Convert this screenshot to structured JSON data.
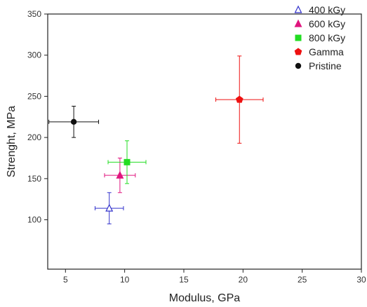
{
  "chart_data": {
    "type": "scatter",
    "xlabel": "Modulus, GPa",
    "ylabel": "Strenght, MPa",
    "xlim": [
      3.5,
      30
    ],
    "ylim": [
      40,
      350
    ],
    "x_ticks": [
      5,
      10,
      15,
      20,
      25,
      30
    ],
    "y_ticks": [
      100,
      150,
      200,
      250,
      300,
      350
    ],
    "grid": false,
    "legend_position": "top-right",
    "series": [
      {
        "name": "400 kGy",
        "color": "#3333cc",
        "marker": "triangle-open",
        "points": [
          {
            "x": 8.7,
            "y": 114,
            "xerr": 1.2,
            "yerr": 19
          }
        ]
      },
      {
        "name": "600 kGy",
        "color": "#e0157e",
        "marker": "triangle",
        "points": [
          {
            "x": 9.6,
            "y": 154,
            "xerr": 1.3,
            "yerr": 21
          }
        ]
      },
      {
        "name": "800 kGy",
        "color": "#22dd22",
        "marker": "square",
        "points": [
          {
            "x": 10.2,
            "y": 170,
            "xerr": 1.6,
            "yerr": 26
          }
        ]
      },
      {
        "name": "Gamma",
        "color": "#ee1111",
        "marker": "pentagon",
        "points": [
          {
            "x": 19.7,
            "y": 246,
            "xerr": 2.0,
            "yerr": 53
          }
        ]
      },
      {
        "name": "Pristine",
        "color": "#111111",
        "marker": "circle",
        "points": [
          {
            "x": 5.7,
            "y": 219,
            "xerr": 2.1,
            "yerr": 19
          }
        ]
      }
    ]
  }
}
